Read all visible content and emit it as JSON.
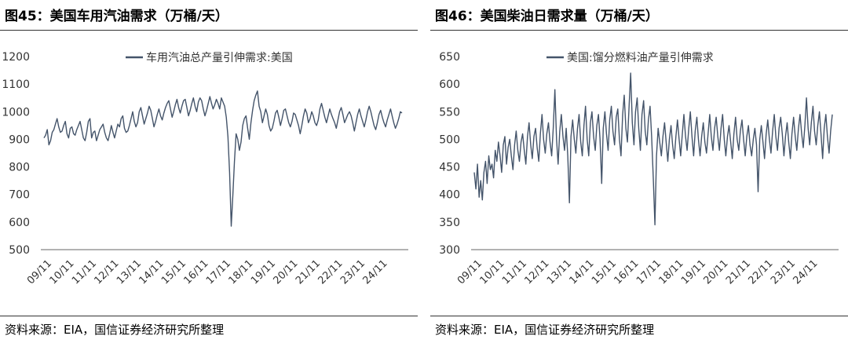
{
  "charts": [
    {
      "title": "图45：美国车用汽油需求（万桶/天）",
      "source": "资料来源：EIA，国信证券经济研究所整理",
      "chart_data": {
        "type": "line",
        "series": [
          {
            "name": "车用汽油总产量引伸需求:美国",
            "color": "#44546A",
            "values": [
              905,
              915,
              935,
              880,
              895,
              925,
              935,
              955,
              975,
              945,
              925,
              930,
              950,
              965,
              920,
              905,
              940,
              945,
              920,
              915,
              935,
              950,
              965,
              935,
              905,
              895,
              925,
              965,
              975,
              905,
              925,
              930,
              895,
              915,
              935,
              945,
              955,
              925,
              905,
              895,
              920,
              950,
              925,
              905,
              930,
              955,
              945,
              975,
              985,
              940,
              925,
              930,
              950,
              975,
              1000,
              965,
              945,
              960,
              1000,
              1015,
              985,
              955,
              975,
              995,
              1020,
              1005,
              975,
              945,
              965,
              990,
              1010,
              985,
              970,
              995,
              1015,
              1030,
              1040,
              1010,
              980,
              1000,
              1025,
              1045,
              1015,
              995,
              1020,
              1040,
              1045,
              1015,
              985,
              1005,
              1030,
              1050,
              1020,
              1000,
              1035,
              1050,
              1040,
              1010,
              985,
              1005,
              1030,
              1055,
              1030,
              1010,
              1025,
              1045,
              1030,
              1010,
              1050,
              1035,
              1020,
              980,
              910,
              780,
              585,
              700,
              820,
              920,
              900,
              860,
              890,
              950,
              975,
              985,
              940,
              900,
              960,
              1005,
              1040,
              1060,
              1075,
              1020,
              1000,
              960,
              985,
              1010,
              990,
              950,
              930,
              940,
              965,
              995,
              1005,
              980,
              950,
              975,
              1005,
              1010,
              985,
              960,
              945,
              965,
              995,
              990,
              970,
              950,
              920,
              950,
              985,
              1010,
              995,
              960,
              975,
              1000,
              985,
              960,
              950,
              970,
              1010,
              1030,
              1005,
              980,
              960,
              985,
              1010,
              990,
              975,
              960,
              940,
              970,
              1000,
              1015,
              990,
              960,
              975,
              990,
              1000,
              985,
              960,
              930,
              960,
              990,
              1010,
              985,
              965,
              945,
              970,
              1000,
              1020,
              1000,
              975,
              950,
              935,
              960,
              990,
              1005,
              980,
              960,
              945,
              970,
              990,
              1010,
              985,
              960,
              940,
              955,
              975,
              1000,
              995
            ]
          }
        ],
        "x_tick_labels": [
          "09/11",
          "10/11",
          "11/11",
          "12/11",
          "13/11",
          "14/11",
          "15/11",
          "16/11",
          "17/11",
          "18/11",
          "19/11",
          "20/11",
          "21/11",
          "22/11",
          "23/11",
          "24/11"
        ],
        "y_ticks": [
          500,
          600,
          700,
          800,
          900,
          1000,
          1100,
          1200
        ],
        "ylim": [
          500,
          1200
        ],
        "grid": false,
        "legend_position": "top-center"
      }
    },
    {
      "title": "图46：美国柴油日需求量（万桶/天）",
      "source": "资料来源：EIA，国信证券经济研究所整理",
      "chart_data": {
        "type": "line",
        "series": [
          {
            "name": "美国:馏分燃料油产量引伸需求",
            "color": "#44546A",
            "values": [
              440,
              410,
              455,
              395,
              425,
              390,
              440,
              460,
              420,
              470,
              445,
              455,
              430,
              480,
              460,
              495,
              470,
              440,
              490,
              505,
              455,
              485,
              500,
              470,
              445,
              490,
              515,
              480,
              460,
              495,
              510,
              480,
              455,
              505,
              530,
              490,
              465,
              505,
              520,
              485,
              460,
              510,
              545,
              500,
              475,
              510,
              530,
              495,
              470,
              520,
              590,
              500,
              455,
              515,
              545,
              505,
              480,
              520,
              470,
              385,
              505,
              535,
              500,
              475,
              520,
              545,
              495,
              470,
              525,
              560,
              500,
              470,
              530,
              550,
              505,
              480,
              525,
              545,
              500,
              420,
              520,
              550,
              510,
              480,
              535,
              560,
              515,
              490,
              540,
              555,
              500,
              470,
              545,
              580,
              520,
              495,
              560,
              620,
              530,
              490,
              550,
              575,
              520,
              480,
              545,
              570,
              515,
              490,
              535,
              560,
              505,
              430,
              345,
              470,
              520,
              495,
              470,
              505,
              530,
              495,
              460,
              500,
              525,
              490,
              465,
              505,
              535,
              500,
              470,
              510,
              545,
              505,
              480,
              520,
              550,
              505,
              470,
              515,
              540,
              500,
              470,
              505,
              530,
              495,
              475,
              510,
              545,
              505,
              480,
              520,
              540,
              505,
              480,
              520,
              545,
              500,
              470,
              505,
              525,
              495,
              465,
              510,
              540,
              500,
              480,
              515,
              535,
              500,
              470,
              505,
              525,
              490,
              470,
              500,
              520,
              490,
              405,
              500,
              525,
              495,
              465,
              510,
              535,
              500,
              475,
              515,
              545,
              505,
              480,
              520,
              540,
              510,
              470,
              505,
              530,
              495,
              465,
              510,
              540,
              505,
              480,
              520,
              545,
              510,
              485,
              525,
              575,
              520,
              490,
              530,
              560,
              515,
              490,
              525,
              550,
              510,
              465,
              520,
              545,
              505,
              475,
              515,
              545
            ]
          }
        ],
        "x_tick_labels": [
          "09/11",
          "10/11",
          "11/11",
          "12/11",
          "13/11",
          "14/11",
          "15/11",
          "16/11",
          "17/11",
          "18/11",
          "19/11",
          "20/11",
          "21/11",
          "22/11",
          "23/11",
          "24/11"
        ],
        "y_ticks": [
          300,
          350,
          400,
          450,
          500,
          550,
          600,
          650
        ],
        "ylim": [
          300,
          650
        ],
        "grid": false,
        "legend_position": "top-center"
      }
    }
  ]
}
